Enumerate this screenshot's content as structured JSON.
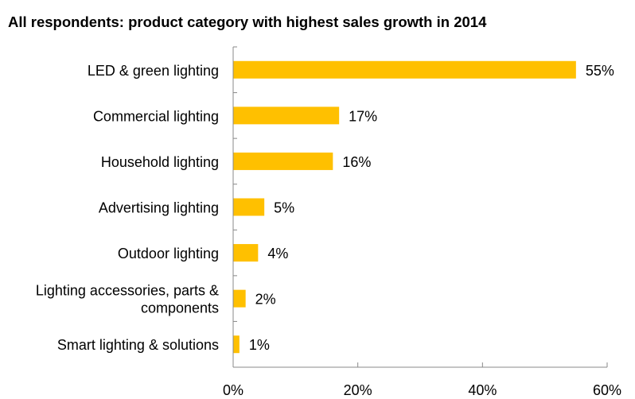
{
  "chart_data": {
    "type": "bar",
    "orientation": "horizontal",
    "title": "All respondents: product category with highest sales growth in 2014",
    "categories": [
      "LED & green lighting",
      "Commercial lighting",
      "Household lighting",
      "Advertising lighting",
      "Outdoor lighting",
      "Lighting accessories, parts & components",
      "Smart lighting & solutions"
    ],
    "category_lines": [
      [
        "LED & green lighting"
      ],
      [
        "Commercial lighting"
      ],
      [
        "Household lighting"
      ],
      [
        "Advertising lighting"
      ],
      [
        "Outdoor lighting"
      ],
      [
        "Lighting accessories, parts &",
        "components"
      ],
      [
        "Smart lighting & solutions"
      ]
    ],
    "values": [
      55,
      17,
      16,
      5,
      4,
      2,
      1
    ],
    "data_labels": [
      "55%",
      "17%",
      "16%",
      "5%",
      "4%",
      "2%",
      "1%"
    ],
    "xlim": [
      0,
      60
    ],
    "xticks": [
      0,
      20,
      40,
      60
    ],
    "xtick_labels": [
      "0%",
      "20%",
      "40%",
      "60%"
    ],
    "xlabel": "",
    "ylabel": "",
    "grid": false,
    "bar_color": "#FFC000"
  }
}
